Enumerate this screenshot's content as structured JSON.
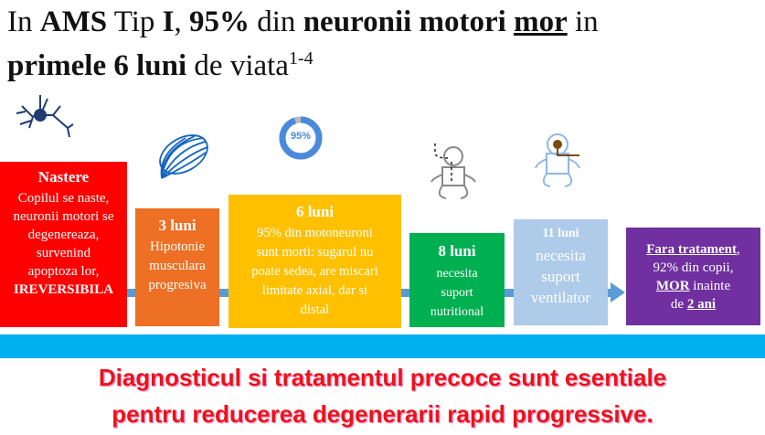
{
  "title": {
    "l1_a": "In ",
    "l1_b": "AMS",
    "l1_c": " Tip ",
    "l1_d": "I",
    "l1_e": ", ",
    "l1_f": "95%",
    "l1_g": " din ",
    "l1_h": "neuronii motori",
    "l1_i": " ",
    "l1_j": "mor",
    "l1_k": " in",
    "l2_a": "primele 6 luni",
    "l2_b": " de viata",
    "l2_sup": "1-4"
  },
  "donut": {
    "label": "95%",
    "percent": 95,
    "color": "#4a89dc"
  },
  "stages": [
    {
      "heading": "Nastere",
      "lines": [
        "Copilul se naste,",
        "neuronii motori se",
        "degenereaza,",
        "survenind",
        "apoptoza lor,"
      ],
      "emphasis": "IREVERSIBILA",
      "color": "#ff0000"
    },
    {
      "heading": "3 luni",
      "lines": [
        "Hipotonie",
        "musculara",
        "progresiva"
      ],
      "color": "#ed7024"
    },
    {
      "heading": "6 luni",
      "lines": [
        "95% din motoneuroni",
        "sunt morti: sugarul nu",
        "poate sedea, are miscari",
        "limitate axial, dar si",
        "distal"
      ],
      "color": "#ffc000"
    },
    {
      "heading": "8 luni",
      "lines": [
        "necesita",
        "suport",
        "nutritional"
      ],
      "color": "#00b050"
    },
    {
      "heading": "11 luni",
      "lines": [
        "necesita",
        "suport",
        "ventilator"
      ],
      "color": "#aecbea"
    },
    {
      "l1": "Fara tratament",
      "l1b": ",",
      "l2": "92% din copii,",
      "l3a": "MOR",
      "l3b": " inainte",
      "l4a": "de ",
      "l4b": "2 ani",
      "color": "#7030a0"
    }
  ],
  "icons": [
    "neuron-icon",
    "muscle-icon",
    "donut-chart-icon",
    "baby-feeding-tube-icon",
    "baby-ventilator-icon"
  ],
  "footer": {
    "line1": "Diagnosticul si tratamentul precoce sunt esentiale",
    "line2": "pentru reducerea degenerarii rapid progressive."
  }
}
